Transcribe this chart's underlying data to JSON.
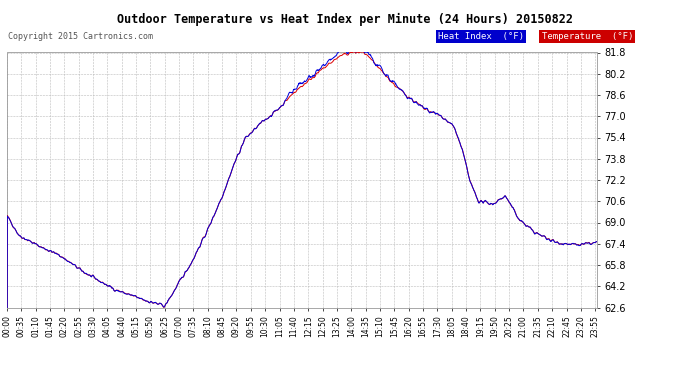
{
  "title": "Outdoor Temperature vs Heat Index per Minute (24 Hours) 20150822",
  "copyright": "Copyright 2015 Cartronics.com",
  "background_color": "#ffffff",
  "plot_bg_color": "#ffffff",
  "grid_color": "#bbbbbb",
  "y_min": 62.6,
  "y_max": 81.8,
  "y_ticks": [
    62.6,
    64.2,
    65.8,
    67.4,
    69.0,
    70.6,
    72.2,
    73.8,
    75.4,
    77.0,
    78.6,
    80.2,
    81.8
  ],
  "temp_color": "#dd0000",
  "heat_color": "#0000dd",
  "legend_heat_bg": "#0000cc",
  "legend_temp_bg": "#cc0000",
  "x_labels": [
    "00:00",
    "00:35",
    "01:10",
    "01:45",
    "02:20",
    "02:55",
    "03:30",
    "04:05",
    "04:40",
    "05:15",
    "05:50",
    "06:25",
    "07:00",
    "07:35",
    "08:10",
    "08:45",
    "09:20",
    "09:55",
    "10:30",
    "11:05",
    "11:40",
    "12:15",
    "12:50",
    "13:25",
    "14:00",
    "14:35",
    "15:10",
    "15:45",
    "16:20",
    "16:55",
    "17:30",
    "18:05",
    "18:40",
    "19:15",
    "19:50",
    "20:25",
    "21:00",
    "21:35",
    "22:10",
    "22:45",
    "23:20",
    "23:55"
  ],
  "figwidth": 6.9,
  "figheight": 3.75,
  "dpi": 100
}
